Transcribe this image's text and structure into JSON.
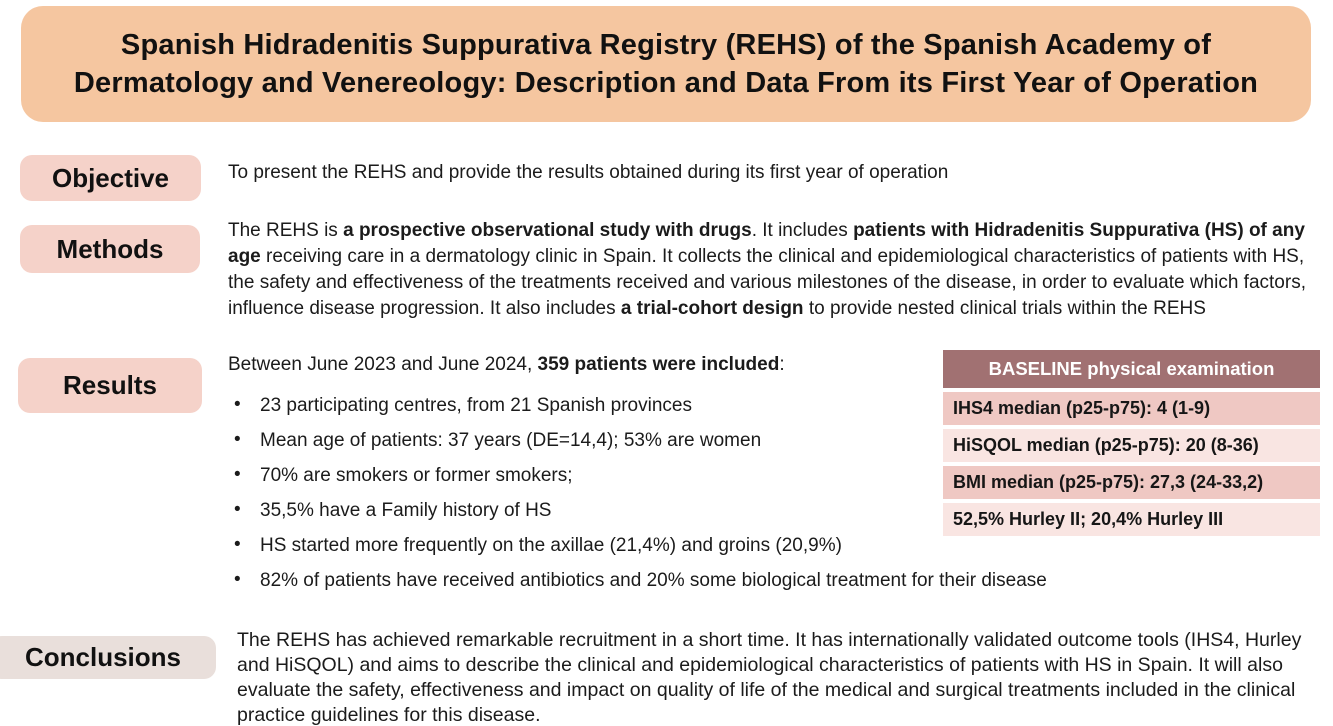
{
  "title": "Spanish Hidradenitis Suppurativa Registry (REHS) of the Spanish Academy of Dermatology and Venereology: Description and Data From its First Year of Operation",
  "colors": {
    "banner_bg": "#F5C6A0",
    "label_bg": "#F5D2C9",
    "conclusions_label_bg": "#E9DFDB",
    "table_header_bg": "#A17172",
    "table_header_text": "#FFFFFF",
    "table_row_odd_bg": "#EFC8C3",
    "table_row_even_bg": "#F9E5E2",
    "text": "#1B1B1B"
  },
  "objective": {
    "label": "Objective",
    "text": "To present the REHS and provide the results obtained during its first year of operation"
  },
  "methods": {
    "label": "Methods",
    "segments": [
      {
        "text": "The REHS is ",
        "bold": false
      },
      {
        "text": "a prospective observational study with drugs",
        "bold": true
      },
      {
        "text": ". It includes ",
        "bold": false
      },
      {
        "text": "patients with Hidradenitis Suppurativa (HS) of any age",
        "bold": true
      },
      {
        "text": " receiving care in a dermatology clinic in Spain. It collects the clinical and epidemiological characteristics of patients with HS, the safety and effectiveness of the treatments received and various milestones of the disease, in order to evaluate which factors, influence disease progression. It also includes ",
        "bold": false
      },
      {
        "text": "a trial-cohort design",
        "bold": true
      },
      {
        "text": " to provide nested clinical trials within the REHS",
        "bold": false
      }
    ]
  },
  "results": {
    "label": "Results",
    "intro_segments": [
      {
        "text": "Between June 2023 and June 2024, ",
        "bold": false
      },
      {
        "text": "359 patients were included",
        "bold": true
      },
      {
        "text": ":",
        "bold": false
      }
    ],
    "bullets": [
      "23 participating centres, from 21 Spanish provinces",
      "Mean age of patients: 37 years (DE=14,4); 53% are women",
      "70% are smokers or former smokers;",
      "35,5% have a Family history of HS",
      "HS started more frequently on the axillae (21,4%) and groins (20,9%)",
      "82% of patients have received antibiotics and 20% some biological treatment for their disease"
    ]
  },
  "baseline_table": {
    "header": "BASELINE physical examination",
    "rows": [
      "IHS4 median (p25-p75): 4 (1-9)",
      "HiSQOL median (p25-p75): 20 (8-36)",
      "BMI median (p25-p75): 27,3 (24-33,2)",
      "52,5% Hurley II; 20,4% Hurley III"
    ]
  },
  "conclusions": {
    "label": "Conclusions",
    "text": "The REHS has achieved remarkable recruitment in a short time. It has internationally validated outcome tools (IHS4, Hurley and HiSQOL) and aims to describe the clinical and epidemiological characteristics of patients with HS in Spain. It will also evaluate the safety, effectiveness and impact on quality of life of the medical and surgical treatments included in the clinical practice guidelines for this disease."
  }
}
